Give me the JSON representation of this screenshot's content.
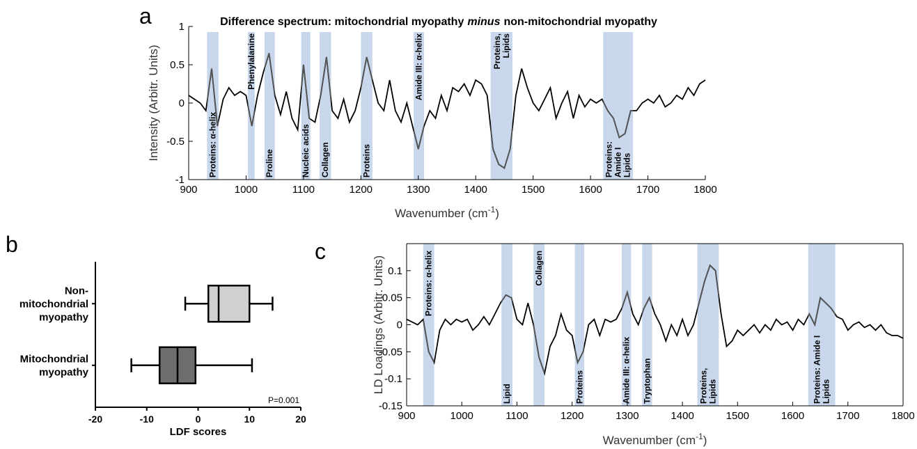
{
  "chart_data": [
    {
      "type": "line",
      "panel": "a",
      "title": [
        "Difference spectrum: mitochondrial myopathy",
        "minus",
        "non-mitochondrial myopathy"
      ],
      "xlabel": [
        "Wavenumber (cm",
        "-1",
        ")"
      ],
      "ylabel": "Intensity (Arbitr. Units)",
      "xlim": [
        900,
        1800
      ],
      "xticks": [
        900,
        1000,
        1100,
        1200,
        1300,
        1400,
        1500,
        1600,
        1700,
        1800
      ],
      "ylim": [
        -1,
        1
      ],
      "yticks": [
        -1,
        -0.5,
        0,
        0.5,
        1
      ],
      "color": "#000000",
      "region_line_color": "#555555",
      "region_color": "#c9d7ec",
      "regions": [
        {
          "label": [
            "Proteins: α-helix"
          ],
          "x0": 932,
          "x1": 952
        },
        {
          "label": [
            "Phenylalanine"
          ],
          "x0": 1003,
          "x1": 1015
        },
        {
          "label": [
            "Proline"
          ],
          "x0": 1032,
          "x1": 1050
        },
        {
          "label": [
            "Nucleic acids"
          ],
          "x0": 1096,
          "x1": 1112
        },
        {
          "label": [
            "Collagen"
          ],
          "x0": 1128,
          "x1": 1148
        },
        {
          "label": [
            "Proteins"
          ],
          "x0": 1200,
          "x1": 1220
        },
        {
          "label": [
            "Amide III: α-helix"
          ],
          "x0": 1292,
          "x1": 1310
        },
        {
          "label": [
            "Proteins,",
            "Lipids"
          ],
          "x0": 1426,
          "x1": 1464
        },
        {
          "label": [
            "Proteins:",
            "Amide I",
            "Lipids"
          ],
          "x0": 1622,
          "x1": 1674
        }
      ],
      "x": [
        900,
        910,
        920,
        930,
        940,
        950,
        960,
        970,
        980,
        990,
        1000,
        1010,
        1020,
        1030,
        1040,
        1050,
        1060,
        1070,
        1080,
        1090,
        1100,
        1110,
        1120,
        1130,
        1140,
        1150,
        1160,
        1170,
        1180,
        1190,
        1200,
        1210,
        1220,
        1230,
        1240,
        1250,
        1260,
        1270,
        1280,
        1290,
        1300,
        1310,
        1320,
        1330,
        1340,
        1350,
        1360,
        1370,
        1380,
        1390,
        1400,
        1410,
        1420,
        1430,
        1440,
        1450,
        1460,
        1470,
        1480,
        1490,
        1500,
        1510,
        1520,
        1530,
        1540,
        1550,
        1560,
        1570,
        1580,
        1590,
        1600,
        1610,
        1620,
        1630,
        1640,
        1650,
        1660,
        1670,
        1680,
        1690,
        1700,
        1710,
        1720,
        1730,
        1740,
        1750,
        1760,
        1770,
        1780,
        1790,
        1800
      ],
      "values": [
        0.1,
        0.05,
        0.0,
        -0.1,
        0.45,
        -0.3,
        0.05,
        0.2,
        0.1,
        0.15,
        0.1,
        -0.3,
        0.1,
        0.4,
        0.65,
        0.1,
        -0.15,
        0.15,
        -0.2,
        -0.35,
        0.5,
        -0.2,
        -0.25,
        0.1,
        0.6,
        -0.1,
        -0.2,
        0.05,
        -0.25,
        -0.1,
        0.2,
        0.6,
        0.3,
        0.0,
        -0.1,
        0.3,
        -0.1,
        -0.25,
        0.0,
        -0.3,
        -0.6,
        -0.3,
        -0.1,
        -0.2,
        0.1,
        -0.1,
        0.2,
        0.15,
        0.25,
        0.1,
        0.3,
        0.25,
        0.1,
        -0.6,
        -0.8,
        -0.85,
        -0.6,
        0.1,
        0.45,
        0.2,
        0.0,
        -0.1,
        0.05,
        0.2,
        -0.2,
        0.0,
        0.15,
        -0.2,
        0.1,
        -0.05,
        0.05,
        0.0,
        0.05,
        -0.1,
        -0.2,
        -0.45,
        -0.4,
        -0.1,
        -0.1,
        0.0,
        0.05,
        0.0,
        0.1,
        -0.05,
        0.0,
        0.1,
        0.05,
        0.2,
        0.1,
        0.25,
        0.3
      ]
    },
    {
      "type": "box",
      "panel": "b",
      "categories": [
        [
          "Non-",
          "mitochondrial",
          "myopathy"
        ],
        [
          "Mitochondrial",
          "myopathy"
        ]
      ],
      "boxes": [
        {
          "min": -2.5,
          "q1": 2,
          "median": 4,
          "q3": 10,
          "max": 14.5,
          "color": "#d0d0d0"
        },
        {
          "min": -13,
          "q1": -7.5,
          "median": -4,
          "q3": -0.5,
          "max": 10.5,
          "color": "#6e6e6e"
        }
      ],
      "xlabel": "LDF scores",
      "xlim": [
        -20,
        20
      ],
      "xticks": [
        -20,
        -10,
        0,
        10,
        20
      ],
      "annotation": "P=0.001"
    },
    {
      "type": "line",
      "panel": "c",
      "xlabel": [
        "Wavenumber (cm",
        "-1",
        ")"
      ],
      "ylabel": "LD Loadings (Arbitr. Units)",
      "xlim": [
        900,
        1800
      ],
      "xticks": [
        900,
        1000,
        1100,
        1200,
        1300,
        1400,
        1500,
        1600,
        1700,
        1800
      ],
      "ylim": [
        -0.15,
        0.15
      ],
      "yticks": [
        -0.15,
        -0.1,
        -0.05,
        0,
        0.05,
        0.1
      ],
      "color": "#000000",
      "region_line_color": "#555555",
      "region_color": "#c9d7ec",
      "regions": [
        {
          "label": [
            "Proteins: α-helix"
          ],
          "x0": 930,
          "x1": 950
        },
        {
          "label": [
            "Lipid"
          ],
          "x0": 1072,
          "x1": 1092
        },
        {
          "label": [
            "Collagen"
          ],
          "x0": 1130,
          "x1": 1150
        },
        {
          "label": [
            "Proteins"
          ],
          "x0": 1205,
          "x1": 1222
        },
        {
          "label": [
            "Amide III: α-helix"
          ],
          "x0": 1290,
          "x1": 1307
        },
        {
          "label": [
            "Tryptophan"
          ],
          "x0": 1327,
          "x1": 1345
        },
        {
          "label": [
            "Proteins,",
            "Lipids"
          ],
          "x0": 1427,
          "x1": 1466
        },
        {
          "label": [
            "Proteins: Amide I",
            "Lipids"
          ],
          "x0": 1628,
          "x1": 1677
        }
      ],
      "x": [
        900,
        910,
        920,
        930,
        940,
        950,
        960,
        970,
        980,
        990,
        1000,
        1010,
        1020,
        1030,
        1040,
        1050,
        1060,
        1070,
        1080,
        1090,
        1100,
        1110,
        1120,
        1130,
        1140,
        1150,
        1160,
        1170,
        1180,
        1190,
        1200,
        1210,
        1220,
        1230,
        1240,
        1250,
        1260,
        1270,
        1280,
        1290,
        1300,
        1310,
        1320,
        1330,
        1340,
        1350,
        1360,
        1370,
        1380,
        1390,
        1400,
        1410,
        1420,
        1430,
        1440,
        1450,
        1460,
        1470,
        1480,
        1490,
        1500,
        1510,
        1520,
        1530,
        1540,
        1550,
        1560,
        1570,
        1580,
        1590,
        1600,
        1610,
        1620,
        1630,
        1640,
        1650,
        1660,
        1670,
        1680,
        1690,
        1700,
        1710,
        1720,
        1730,
        1740,
        1750,
        1760,
        1770,
        1780,
        1790,
        1800
      ],
      "values": [
        0.01,
        0.005,
        0.0,
        0.01,
        -0.05,
        -0.07,
        -0.01,
        0.01,
        0.0,
        0.01,
        0.005,
        0.01,
        -0.01,
        0.0,
        0.015,
        0.0,
        0.02,
        0.04,
        0.055,
        0.05,
        0.01,
        0.0,
        0.04,
        0.0,
        -0.06,
        -0.09,
        -0.04,
        -0.02,
        0.02,
        -0.01,
        -0.02,
        -0.07,
        -0.05,
        0.0,
        0.01,
        -0.02,
        0.01,
        0.005,
        0.01,
        0.03,
        0.06,
        0.02,
        0.0,
        0.03,
        0.05,
        0.02,
        0.0,
        -0.03,
        0.0,
        -0.02,
        0.01,
        -0.02,
        0.0,
        0.04,
        0.08,
        0.11,
        0.1,
        0.02,
        -0.04,
        -0.03,
        -0.01,
        -0.02,
        -0.01,
        0.0,
        -0.015,
        0.0,
        -0.01,
        0.01,
        0.0,
        0.005,
        -0.01,
        0.01,
        0.0,
        0.02,
        0.0,
        0.05,
        0.04,
        0.03,
        0.015,
        0.01,
        -0.01,
        0.0,
        0.005,
        -0.005,
        0.0,
        -0.01,
        0.0,
        -0.015,
        -0.02,
        -0.02,
        -0.025
      ]
    }
  ]
}
